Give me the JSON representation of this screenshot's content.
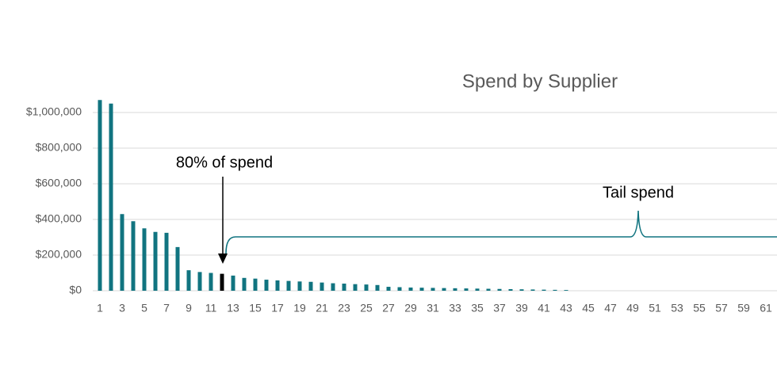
{
  "chart_data": {
    "type": "bar",
    "title": "Spend by Supplier",
    "categories": [
      1,
      null,
      3,
      null,
      5,
      null,
      7,
      null,
      9,
      null,
      11,
      null,
      13,
      null,
      15,
      null,
      17,
      null,
      19,
      null,
      21,
      null,
      23,
      null,
      25,
      null,
      27,
      null,
      29,
      null,
      31,
      null,
      33,
      null,
      35,
      null,
      37,
      null,
      39,
      null,
      41,
      null,
      43,
      null,
      45,
      null,
      47,
      null,
      49,
      null,
      51,
      null,
      53,
      null,
      55,
      null,
      57,
      null,
      59,
      null,
      61,
      null
    ],
    "values": [
      1070000,
      1050000,
      430000,
      390000,
      350000,
      330000,
      325000,
      245000,
      115000,
      105000,
      100000,
      95000,
      85000,
      72000,
      68000,
      62000,
      58000,
      55000,
      52000,
      50000,
      46000,
      42000,
      40000,
      37000,
      35000,
      32000,
      22000,
      20000,
      18000,
      17000,
      16000,
      15000,
      14000,
      13000,
      12000,
      11000,
      10000,
      9000,
      8000,
      7000,
      6000,
      5000,
      4000,
      0,
      0,
      0,
      0,
      0,
      0,
      0,
      0,
      0,
      0,
      0,
      0,
      0,
      0,
      0,
      0,
      0,
      0,
      0
    ],
    "colors": [
      "#117480",
      "#117480",
      "#117480",
      "#117480",
      "#117480",
      "#117480",
      "#117480",
      "#117480",
      "#117480",
      "#117480",
      "#117480",
      "#000000",
      "#117480",
      "#117480",
      "#117480",
      "#117480",
      "#117480",
      "#117480",
      "#117480",
      "#117480",
      "#117480",
      "#117480",
      "#117480",
      "#117480",
      "#117480",
      "#117480",
      "#117480",
      "#117480",
      "#117480",
      "#117480",
      "#117480",
      "#117480",
      "#117480",
      "#117480",
      "#117480",
      "#117480",
      "#117480",
      "#117480",
      "#117480",
      "#117480",
      "#117480",
      "#117480",
      "#117480",
      "#117480",
      "#117480",
      "#117480",
      "#117480",
      "#117480",
      "#117480",
      "#117480",
      "#117480",
      "#117480",
      "#117480",
      "#117480",
      "#117480",
      "#117480",
      "#117480",
      "#117480",
      "#117480",
      "#117480",
      "#117480",
      "#117480"
    ],
    "ylim": [
      0,
      1000000
    ],
    "yticks": [
      {
        "value": 0,
        "label": "$0"
      },
      {
        "value": 200000,
        "label": "$200,000"
      },
      {
        "value": 400000,
        "label": "$400,000"
      },
      {
        "value": 600000,
        "label": "$600,000"
      },
      {
        "value": 800000,
        "label": "$800,000"
      },
      {
        "value": 1000000,
        "label": "$1,000,000"
      }
    ],
    "grid": true,
    "annotations": [
      "80% of spend",
      "Tail spend"
    ]
  }
}
